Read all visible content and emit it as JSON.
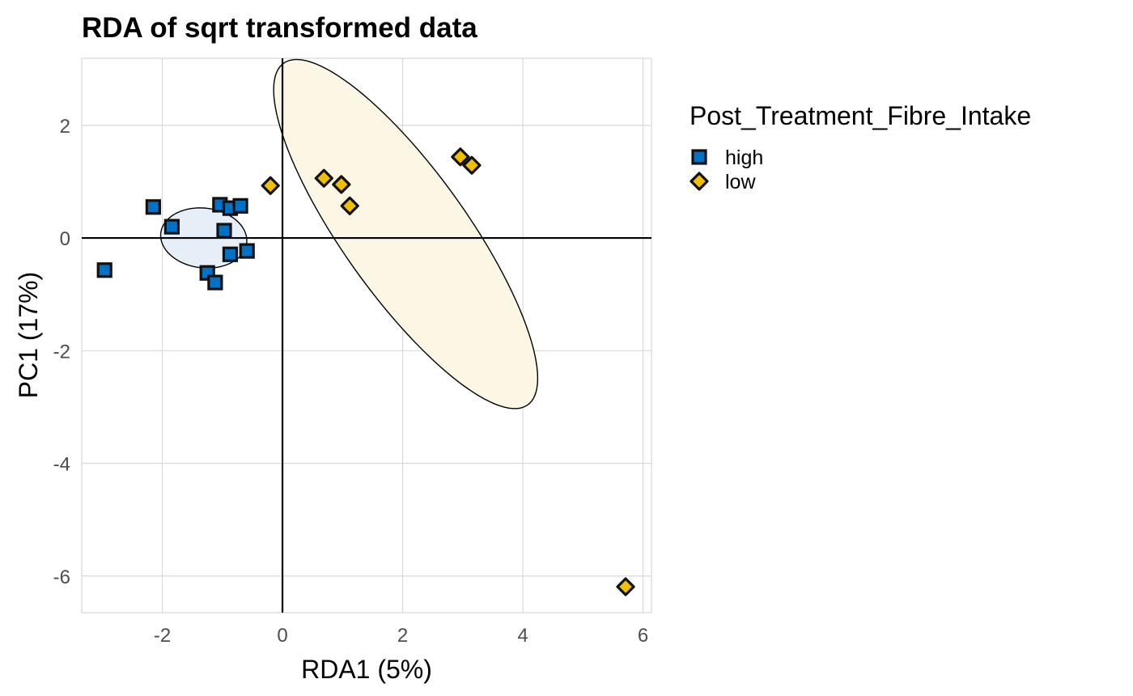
{
  "chart_data": {
    "type": "scatter",
    "title": "RDA of sqrt transformed data",
    "xlabel": "RDA1 (5%)",
    "ylabel": "PC1 (17%)",
    "xlim": [
      -3.34,
      6.14
    ],
    "ylim": [
      -6.65,
      3.19
    ],
    "xticks": [
      -2,
      0,
      2,
      4,
      6
    ],
    "yticks": [
      2,
      0,
      -2,
      -4,
      -6
    ],
    "xtick_labels": [
      "-2",
      "0",
      "2",
      "4",
      "6"
    ],
    "ytick_labels": [
      "2",
      "0",
      "-2",
      "-4",
      "-6"
    ],
    "grid": true,
    "reference_lines": {
      "x": 0,
      "y": 0
    },
    "legend": {
      "title": "Post_Treatment_Fibre_Intake",
      "placement": "right",
      "entries": [
        {
          "label": "high",
          "shape": "square",
          "color": "#0072C6"
        },
        {
          "label": "low",
          "shape": "diamond",
          "color": "#F0C000"
        }
      ]
    },
    "series": [
      {
        "name": "high",
        "shape": "square",
        "color": "#0072C6",
        "points": [
          {
            "x": -2.96,
            "y": -0.57
          },
          {
            "x": -2.15,
            "y": 0.55
          },
          {
            "x": -1.84,
            "y": 0.2
          },
          {
            "x": -1.04,
            "y": 0.59
          },
          {
            "x": -0.87,
            "y": 0.53
          },
          {
            "x": -0.7,
            "y": 0.57
          },
          {
            "x": -0.97,
            "y": 0.13
          },
          {
            "x": -0.87,
            "y": -0.29
          },
          {
            "x": -0.59,
            "y": -0.23
          },
          {
            "x": -1.25,
            "y": -0.62
          },
          {
            "x": -1.12,
            "y": -0.79
          }
        ],
        "ellipse": {
          "cx": -1.31,
          "cy": 0.0,
          "rx": 0.72,
          "ry": 0.53,
          "angle_deg": -8,
          "fill": "#E6EFF8"
        }
      },
      {
        "name": "low",
        "shape": "diamond",
        "color": "#F0C000",
        "points": [
          {
            "x": -0.2,
            "y": 0.93
          },
          {
            "x": 0.69,
            "y": 1.06
          },
          {
            "x": 0.98,
            "y": 0.95
          },
          {
            "x": 1.12,
            "y": 0.57
          },
          {
            "x": 2.96,
            "y": 1.44
          },
          {
            "x": 3.15,
            "y": 1.29
          },
          {
            "x": 5.71,
            "y": -6.19
          }
        ],
        "ellipse": {
          "cx": 2.05,
          "cy": 0.07,
          "rx": 3.65,
          "ry": 1.05,
          "angle_deg": -56.5,
          "fill": "#FCF6E4"
        }
      }
    ]
  }
}
